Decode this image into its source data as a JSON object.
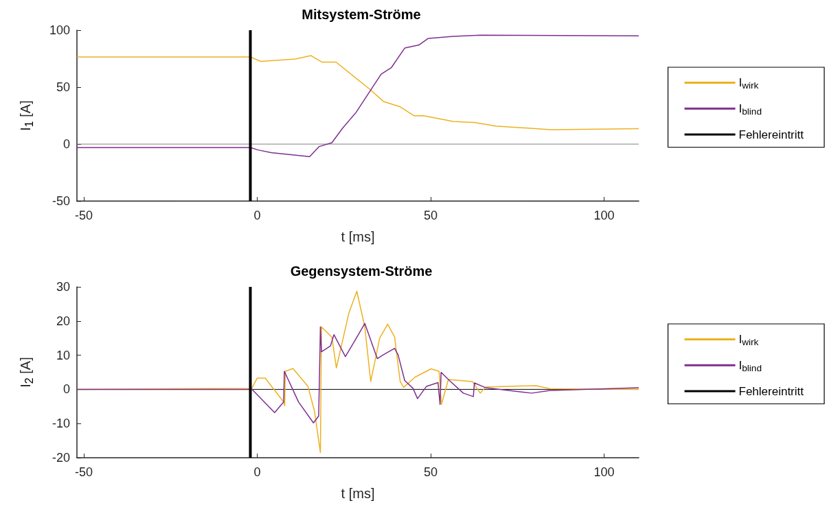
{
  "chart_data": [
    {
      "type": "line",
      "title": "Mitsystem-Ströme",
      "xlabel": "t [ms]",
      "ylabel": "I$_{1}$ [A]",
      "xlim": [
        -52,
        110
      ],
      "xticks": [
        -50,
        0,
        50,
        100
      ],
      "ylim": [
        -50,
        100
      ],
      "yticks": [
        -50,
        0,
        50,
        100
      ],
      "grid": false,
      "legend": "right",
      "marker": "none",
      "line_style": "solid",
      "series": [
        {
          "name": "I$_{wirk}$",
          "color": "#edb120",
          "x": [
            -52,
            -2,
            1,
            11,
            15.5,
            18.6,
            22.7,
            28,
            32.2,
            36.4,
            41,
            45.2,
            47.8,
            56.5,
            62.6,
            68.8,
            84.7,
            110
          ],
          "values": [
            76.5,
            76.5,
            72.6,
            74.7,
            77.7,
            72,
            72,
            59,
            48.8,
            37.4,
            33,
            24.9,
            25,
            19.9,
            19,
            15.8,
            12.7,
            13.5
          ]
        },
        {
          "name": "I$_{blind}$",
          "color": "#7e2f8e",
          "x": [
            -52,
            -2,
            0.3,
            4.1,
            15.1,
            17.8,
            21.5,
            24.6,
            28.5,
            35.7,
            38.7,
            42.5,
            46.6,
            49.3,
            56.5,
            64.2,
            110
          ],
          "values": [
            -3,
            -3,
            -5.2,
            -7.5,
            -11,
            -2.2,
            1.2,
            14,
            27.9,
            61.4,
            67.3,
            84.3,
            87,
            92.8,
            94.6,
            95.6,
            95
          ]
        },
        {
          "name": "Fehlereintritt",
          "color": "#000000",
          "x": [
            -2,
            -2
          ],
          "values": [
            -50,
            100
          ]
        }
      ],
      "ref_lines": [
        {
          "axis": "y",
          "value": 0,
          "color": "#808080"
        }
      ]
    },
    {
      "type": "line",
      "title": "Gegensystem-Ströme",
      "xlabel": "t [ms]",
      "ylabel": "I$_{2}$ [A]",
      "xlim": [
        -52,
        110
      ],
      "xticks": [
        -50,
        0,
        50,
        100
      ],
      "ylim": [
        -20,
        30
      ],
      "yticks": [
        -20,
        -10,
        0,
        10,
        20,
        30
      ],
      "grid": false,
      "legend": "right",
      "marker": "none",
      "line_style": "solid",
      "series": [
        {
          "name": "I$_{wirk}$",
          "color": "#edb120",
          "x": [
            -52,
            -1.6,
            0,
            2.3,
            7.6,
            7.9,
            8.1,
            10.3,
            14.6,
            16.5,
            18.2,
            18.5,
            21.5,
            22.8,
            26.4,
            28.7,
            31,
            32.7,
            35.3,
            37.6,
            39.6,
            41.2,
            42.2,
            45.5,
            50.1,
            52.4,
            53.1,
            55.1,
            62,
            64.3,
            65.8,
            80.4,
            84.4,
            110
          ],
          "values": [
            0,
            0.3,
            3.3,
            3.3,
            -3.7,
            -4.8,
            5.3,
            6.1,
            0.9,
            -6.4,
            -18.5,
            18.3,
            15.3,
            6.3,
            22.3,
            28.7,
            18.3,
            2.3,
            15,
            19.1,
            15.3,
            2.3,
            0.6,
            3.6,
            6,
            5.3,
            -4.4,
            2.9,
            2.3,
            -1.1,
            0.7,
            1.1,
            0.2,
            0
          ]
        },
        {
          "name": "I$_{blind}$",
          "color": "#7e2f8e",
          "x": [
            -52,
            -1.5,
            5,
            7.6,
            7.8,
            11.9,
            16.2,
            17.7,
            18.2,
            18.5,
            21.1,
            22.1,
            25.4,
            28.4,
            31,
            34.6,
            36.3,
            39.6,
            40.6,
            42.5,
            44.9,
            46.2,
            48.8,
            52.1,
            52.7,
            53,
            55.4,
            59.4,
            62.3,
            62.6,
            65.8,
            79.1,
            84.4,
            110
          ],
          "values": [
            0,
            0,
            -6.8,
            -3.7,
            5.3,
            -3.7,
            -9.8,
            -7.8,
            18.3,
            11,
            12.7,
            16,
            9.6,
            14.7,
            19.3,
            9,
            10.1,
            12,
            10.1,
            2.6,
            0.3,
            -2.7,
            0.9,
            2,
            -4.4,
            5,
            2.6,
            -1.1,
            -2.1,
            1.9,
            0.5,
            -1.1,
            -0.3,
            0.5
          ]
        },
        {
          "name": "Fehlereintritt",
          "color": "#000000",
          "x": [
            -2,
            -2
          ],
          "values": [
            -20,
            30
          ]
        }
      ],
      "ref_lines": [
        {
          "axis": "y",
          "value": 0,
          "color": "#000000"
        }
      ]
    }
  ]
}
